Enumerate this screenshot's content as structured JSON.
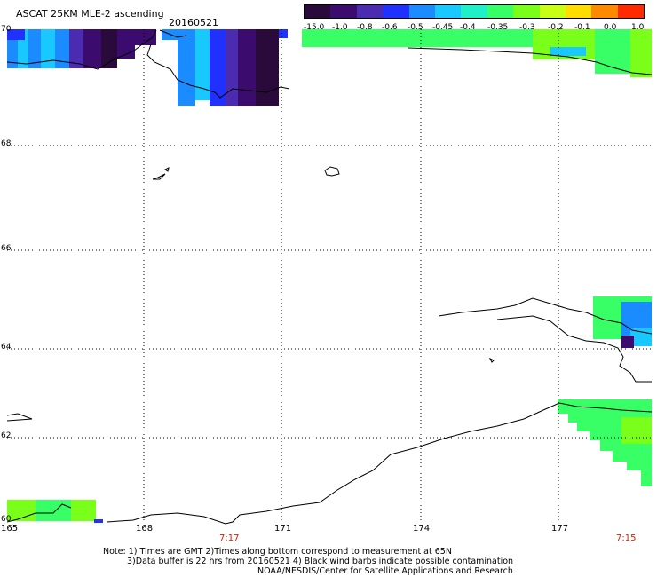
{
  "title": "ASCAT 25KM MLE-2 ascending",
  "date": "20160521",
  "colorbar": {
    "labels": [
      "-15.0",
      "-1.0",
      "-0.8",
      "-0.6",
      "-0.5",
      "-0.45",
      "-0.4",
      "-0.35",
      "-0.3",
      "-0.2",
      "-0.1",
      "0.0",
      "1.0"
    ],
    "colors": [
      "#2a0a3a",
      "#3b0b6e",
      "#4b2cb0",
      "#1f30ff",
      "#1a8cff",
      "#19c8ff",
      "#1ff0c8",
      "#39ff66",
      "#7aff1a",
      "#c8ff14",
      "#ffdd00",
      "#ff8a00",
      "#ff2a00"
    ]
  },
  "map": {
    "lat_labels": [
      "70",
      "68",
      "66",
      "64",
      "62",
      "60"
    ],
    "lon_labels": [
      "165",
      "168",
      "171",
      "174",
      "177"
    ],
    "time_labels": [
      "7:17",
      "7:15"
    ]
  },
  "notes": [
    "Note: 1) Times are GMT 2)Times along bottom correspond to measurement at 65N",
    "3)Data buffer is 22 hrs from 20160521 4) Black wind barbs indicate possible contamination",
    "NOAA/NESDIS/Center for Satellite Applications and Research"
  ]
}
